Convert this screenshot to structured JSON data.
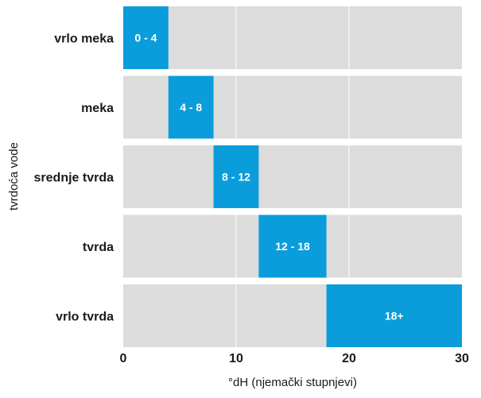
{
  "chart_data": {
    "type": "bar",
    "orientation": "horizontal",
    "categories": [
      "vrlo meka",
      "meka",
      "srednje tvrda",
      "tvrda",
      "vrlo tvrda"
    ],
    "ranges": [
      [
        0,
        4
      ],
      [
        4,
        8
      ],
      [
        8,
        12
      ],
      [
        12,
        18
      ],
      [
        18,
        30
      ]
    ],
    "labels": [
      "0 - 4",
      "4 - 8",
      "8 - 12",
      "12 - 18",
      "18+"
    ],
    "xlabel": "°dH (njemački stupnjevi)",
    "ylabel": "tvrdoća vode",
    "xlim": [
      0,
      30
    ],
    "xticks": [
      0,
      10,
      20,
      30
    ],
    "grid": true,
    "colors": {
      "bar": "#0b9ddb",
      "band": "#dcdcdc",
      "grid": "#ffffff"
    }
  }
}
